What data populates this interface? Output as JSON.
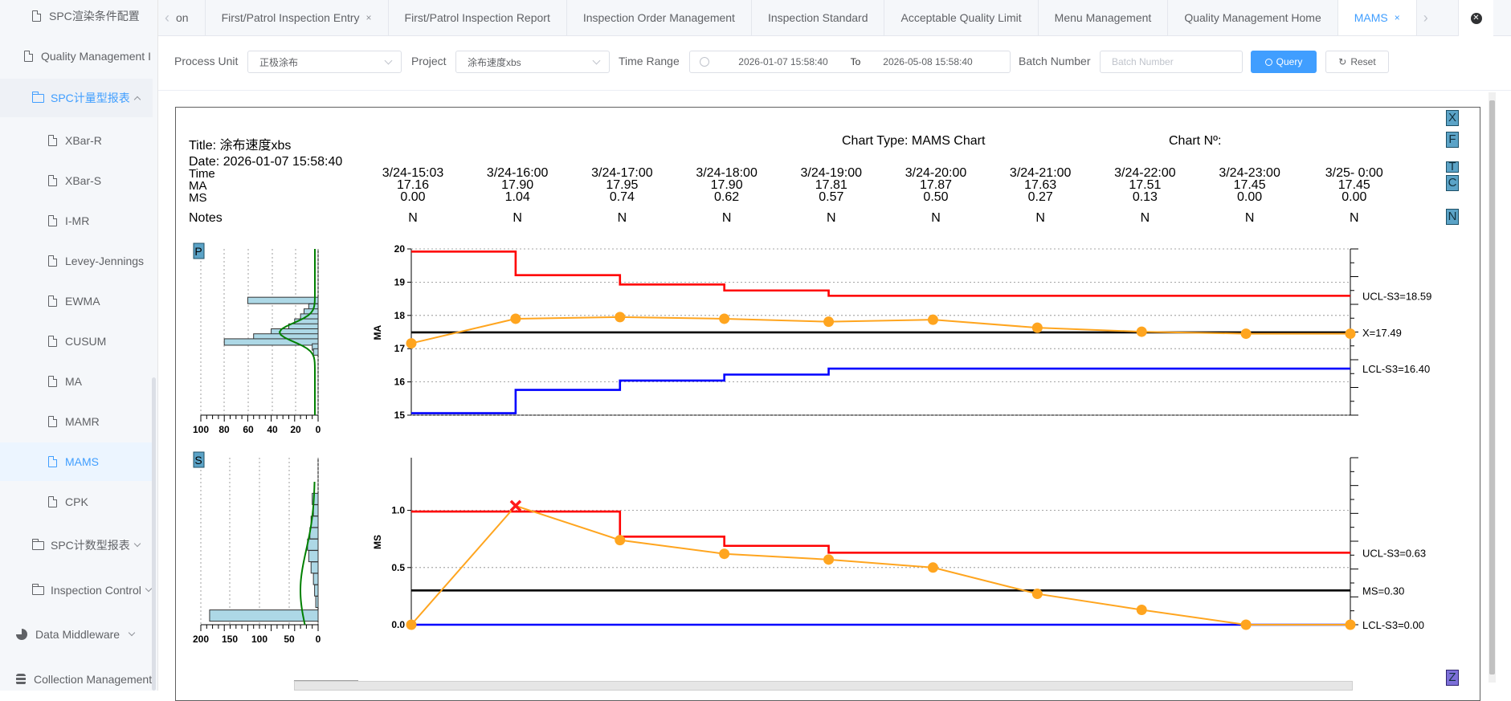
{
  "sidebar": {
    "top_items": [
      {
        "label": "SPC渲染条件配置",
        "top": 20
      },
      {
        "label": "Quality Management I",
        "top": 70
      }
    ],
    "group_label": "SPC计量型报表",
    "sub_items": [
      "XBar-R",
      "XBar-S",
      "I-MR",
      "Levey-Jennings",
      "EWMA",
      "CUSUM",
      "MA",
      "MAMR",
      "MAMS",
      "CPK"
    ],
    "active_item": "MAMS",
    "after_groups": [
      {
        "label": "SPC计数型报表"
      },
      {
        "label": "Inspection Control"
      }
    ],
    "bottom_items": [
      {
        "label": "Data Middleware",
        "icon": "pie-chart-icon"
      },
      {
        "label": "Collection Management",
        "icon": "database-icon"
      }
    ]
  },
  "tabs": [
    {
      "label": "on",
      "closable": false
    },
    {
      "label": "First/Patrol Inspection Entry",
      "closable": true
    },
    {
      "label": "First/Patrol Inspection Report",
      "closable": false
    },
    {
      "label": "Inspection Order Management",
      "closable": false
    },
    {
      "label": "Inspection Standard",
      "closable": false
    },
    {
      "label": "Acceptable Quality Limit",
      "closable": false
    },
    {
      "label": "Menu Management",
      "closable": false
    },
    {
      "label": "Quality Management Home",
      "closable": false
    },
    {
      "label": "MAMS",
      "closable": true,
      "active": true
    }
  ],
  "filters": {
    "process_unit_label": "Process Unit",
    "process_unit_value": "正极涂布",
    "project_label": "Project",
    "project_value": "涂布速度xbs",
    "time_range_label": "Time Range",
    "time_start": "2026-01-07 15:58:40",
    "time_to": "To",
    "time_end": "2026-05-08 15:58:40",
    "batch_label": "Batch Number",
    "batch_placeholder": "Batch Number",
    "query_label": "Query",
    "reset_label": "Reset"
  },
  "report": {
    "title": "Title: 涂布速度xbs",
    "chart_type": "Chart Type: MAMS Chart",
    "chart_no": "Chart Nº:",
    "date": "Date: 2026-01-07 15:58:40",
    "row_labels": {
      "time": "Time",
      "ma": "MA",
      "ms": "MS",
      "notes": "Notes"
    },
    "columns": [
      {
        "time": "3/24-15:03",
        "ma": "17.16",
        "ms": "0.00",
        "note": "N"
      },
      {
        "time": "3/24-16:00",
        "ma": "17.90",
        "ms": "1.04",
        "note": "N"
      },
      {
        "time": "3/24-17:00",
        "ma": "17.95",
        "ms": "0.74",
        "note": "N"
      },
      {
        "time": "3/24-18:00",
        "ma": "17.90",
        "ms": "0.62",
        "note": "N"
      },
      {
        "time": "3/24-19:00",
        "ma": "17.81",
        "ms": "0.57",
        "note": "N"
      },
      {
        "time": "3/24-20:00",
        "ma": "17.87",
        "ms": "0.50",
        "note": "N"
      },
      {
        "time": "3/24-21:00",
        "ma": "17.63",
        "ms": "0.27",
        "note": "N"
      },
      {
        "time": "3/24-22:00",
        "ma": "17.51",
        "ms": "0.13",
        "note": "N"
      },
      {
        "time": "3/24-23:00",
        "ma": "17.45",
        "ms": "0.00",
        "note": "N"
      },
      {
        "time": "3/25- 0:00",
        "ma": "17.45",
        "ms": "0.00",
        "note": "N"
      }
    ],
    "side_buttons": [
      "X",
      "F",
      "T",
      "C",
      "N",
      "Z"
    ],
    "panel_markers": [
      "P",
      "S"
    ]
  },
  "chart_data": [
    {
      "type": "line",
      "ylabel": "MA",
      "ylim": [
        15,
        20
      ],
      "yticks": [
        15,
        16,
        17,
        18,
        19,
        20
      ],
      "categories": [
        "3/24-15:03",
        "3/24-16:00",
        "3/24-17:00",
        "3/24-18:00",
        "3/24-19:00",
        "3/24-20:00",
        "3/24-21:00",
        "3/24-22:00",
        "3/24-23:00",
        "3/25- 0:00"
      ],
      "series": [
        {
          "name": "MA",
          "values": [
            17.16,
            17.9,
            17.95,
            17.9,
            17.81,
            17.87,
            17.63,
            17.51,
            17.45,
            17.45
          ]
        }
      ],
      "ucl_steps": [
        19.92,
        19.21,
        18.93,
        18.75,
        18.59,
        18.59,
        18.59,
        18.59,
        18.59,
        18.59
      ],
      "lcl_steps": [
        15.06,
        15.76,
        16.04,
        16.22,
        16.4,
        16.4,
        16.4,
        16.4,
        16.4,
        16.4
      ],
      "center": 17.49,
      "limit_labels": {
        "ucl": "UCL-S3=18.59",
        "center": "X=17.49",
        "lcl": "LCL-S3=16.40"
      },
      "histogram": {
        "xticks": [
          "100",
          "80",
          "60",
          "40",
          "20",
          "0"
        ],
        "bins": [
          {
            "y": 18.45,
            "count": 60
          },
          {
            "y": 18.25,
            "count": 8
          },
          {
            "y": 18.1,
            "count": 12
          },
          {
            "y": 17.95,
            "count": 15
          },
          {
            "y": 17.8,
            "count": 20
          },
          {
            "y": 17.65,
            "count": 25
          },
          {
            "y": 17.5,
            "count": 40
          },
          {
            "y": 17.35,
            "count": 55
          },
          {
            "y": 17.2,
            "count": 80
          },
          {
            "y": 17.05,
            "count": 5
          },
          {
            "y": 16.9,
            "count": 4
          }
        ]
      }
    },
    {
      "type": "line",
      "ylabel": "MS",
      "ylim": [
        0,
        1.25
      ],
      "yticks": [
        0.0,
        0.5,
        1.0
      ],
      "categories": [
        "3/24-15:03",
        "3/24-16:00",
        "3/24-17:00",
        "3/24-18:00",
        "3/24-19:00",
        "3/24-20:00",
        "3/24-21:00",
        "3/24-22:00",
        "3/24-23:00",
        "3/25- 0:00"
      ],
      "series": [
        {
          "name": "MS",
          "values": [
            0.0,
            1.04,
            0.74,
            0.62,
            0.57,
            0.5,
            0.27,
            0.13,
            0.0,
            0.0
          ]
        }
      ],
      "out_of_control_index": 1,
      "ucl_steps": [
        0.99,
        0.99,
        0.77,
        0.69,
        0.63,
        0.63,
        0.63,
        0.63,
        0.63,
        0.63
      ],
      "lcl_steps": [
        0,
        0,
        0,
        0,
        0,
        0,
        0,
        0,
        0,
        0
      ],
      "center": 0.3,
      "limit_labels": {
        "ucl": "UCL-S3=0.63",
        "center": "MS=0.30",
        "lcl": "LCL-S3=0.00"
      },
      "histogram": {
        "xticks": [
          "200",
          "150",
          "100",
          "50",
          "0"
        ],
        "bins": [
          {
            "y": 1.1,
            "count": 10
          },
          {
            "y": 1.0,
            "count": 8
          },
          {
            "y": 0.9,
            "count": 12
          },
          {
            "y": 0.8,
            "count": 14
          },
          {
            "y": 0.7,
            "count": 18
          },
          {
            "y": 0.6,
            "count": 16
          },
          {
            "y": 0.5,
            "count": 12
          },
          {
            "y": 0.4,
            "count": 8
          },
          {
            "y": 0.3,
            "count": 6
          },
          {
            "y": 0.2,
            "count": 4
          },
          {
            "y": 0.08,
            "count": 185
          }
        ]
      }
    }
  ]
}
